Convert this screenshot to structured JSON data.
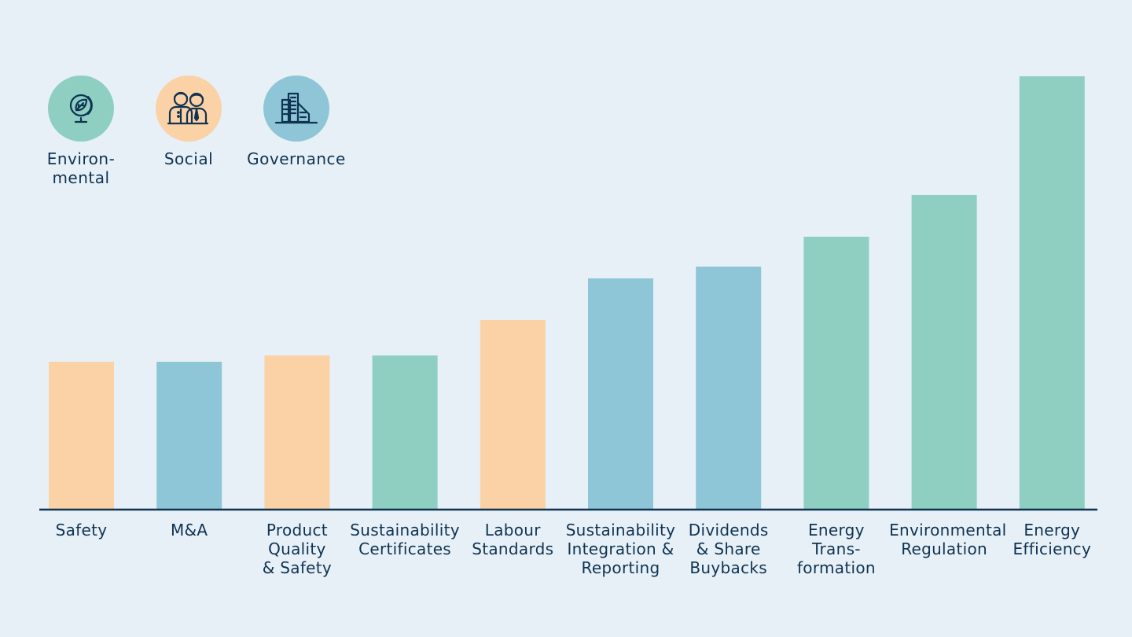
{
  "legend": [
    {
      "key": "environmental",
      "label": "Environ-\nmental",
      "color": "#8ecfc2",
      "icon": "globe-leaf-icon"
    },
    {
      "key": "social",
      "label": "Social",
      "color": "#fbd1a6",
      "icon": "people-icon"
    },
    {
      "key": "governance",
      "label": "Governance",
      "color": "#8fc6d7",
      "icon": "office-building-icon"
    }
  ],
  "colors": {
    "environmental": "#8ecfc2",
    "social": "#fbd1a6",
    "governance": "#8fc6d7",
    "axis": "#0f3352",
    "text": "#0f3352",
    "background": "#e7f0f7"
  },
  "chart_data": {
    "type": "bar",
    "title": "",
    "xlabel": "",
    "ylabel": "",
    "ylim": [
      0,
      560
    ],
    "grid": false,
    "legend_position": "top-left",
    "categories": [
      "Safety",
      "M&A",
      "Product\nQuality\n& Safety",
      "Sustainability\nCertificates",
      "Labour\nStandards",
      "Sustainability\nIntegration &\nReporting",
      "Dividends\n& Share\nBuybacks",
      "Energy\nTrans-\nformation",
      "Environmental\nRegulation",
      "Energy\nEfficiency"
    ],
    "values": [
      188,
      188,
      196,
      196,
      241,
      294,
      309,
      347,
      400,
      551
    ],
    "groups": [
      "social",
      "governance",
      "social",
      "environmental",
      "social",
      "governance",
      "governance",
      "environmental",
      "environmental",
      "environmental"
    ]
  }
}
